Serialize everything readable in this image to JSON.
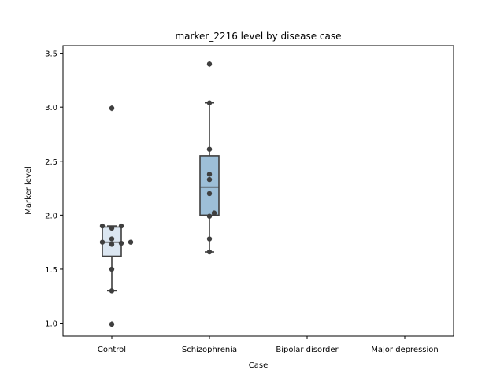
{
  "chart_data": {
    "type": "box",
    "title": "marker_2216 level by disease case",
    "xlabel": "Case",
    "ylabel": "Marker level",
    "categories": [
      "Control",
      "Schizophrenia",
      "Bipolar disorder",
      "Major depression"
    ],
    "ylim": [
      0.88,
      3.57
    ],
    "yticks": [
      1.0,
      1.5,
      2.0,
      2.5,
      3.0,
      3.5
    ],
    "ytick_labels": [
      "1.0",
      "1.5",
      "2.0",
      "2.5",
      "3.0",
      "3.5"
    ],
    "grid": false,
    "legend": "none",
    "boxes": [
      {
        "category": "Control",
        "whisker_low": 1.3,
        "q1": 1.62,
        "median": 1.75,
        "q3": 1.89,
        "whisker_high": 1.9,
        "fliers": [
          0.99,
          2.99
        ],
        "points": [
          1.3,
          1.5,
          1.73,
          1.74,
          1.75,
          1.75,
          1.78,
          1.88,
          1.9,
          1.9,
          0.99,
          2.99
        ],
        "color": "#dbe6f1"
      },
      {
        "category": "Schizophrenia",
        "whisker_low": 1.66,
        "q1": 2.0,
        "median": 2.26,
        "q3": 2.55,
        "whisker_high": 3.04,
        "fliers": [
          3.4
        ],
        "points": [
          1.66,
          1.78,
          1.99,
          2.02,
          2.2,
          2.33,
          2.38,
          2.61,
          3.04,
          3.4
        ],
        "color": "#9dbfd8"
      },
      {
        "category": "Bipolar disorder",
        "points": []
      },
      {
        "category": "Major depression",
        "points": []
      }
    ]
  }
}
